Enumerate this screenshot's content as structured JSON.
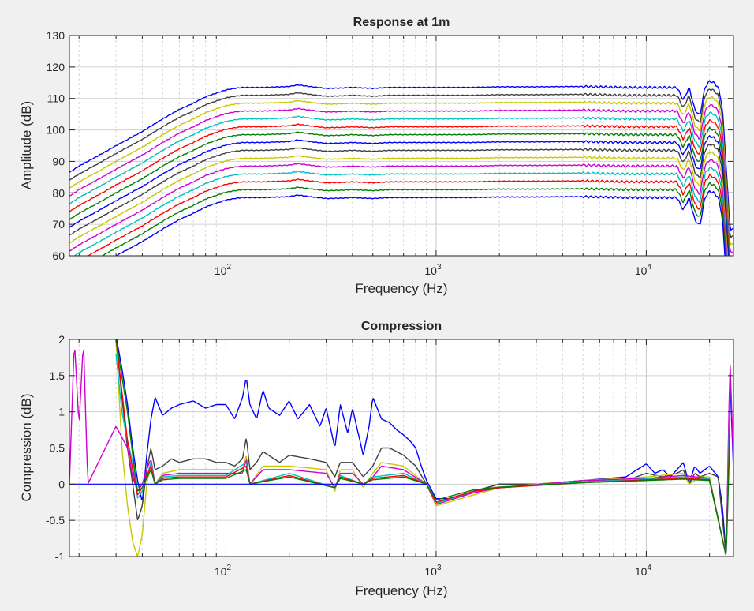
{
  "chart_data": [
    {
      "type": "line",
      "title": "Response at 1m",
      "xlabel": "Frequency (Hz)",
      "ylabel": "Amplitude (dB)",
      "xscale": "log",
      "xlim": [
        18,
        26000
      ],
      "ylim": [
        60,
        130
      ],
      "yticks": [
        "60",
        "70",
        "80",
        "90",
        "100",
        "110",
        "120",
        "130"
      ],
      "xticks": [
        {
          "value": 100,
          "base": "10",
          "exp": "2"
        },
        {
          "value": 1000,
          "base": "10",
          "exp": "3"
        },
        {
          "value": 10000,
          "base": "10",
          "exp": "4"
        }
      ],
      "grid": true,
      "curve_shape": {
        "x": [
          18,
          20,
          25,
          30,
          40,
          50,
          60,
          70,
          80,
          90,
          100,
          110,
          120,
          150,
          200,
          220,
          250,
          300,
          350,
          400,
          500,
          600,
          800,
          1000,
          1500,
          2000,
          3000,
          5000,
          8000,
          10000,
          12000,
          14000,
          15000,
          16000,
          17000,
          18000,
          19000,
          20000,
          21000,
          22000,
          23000,
          24000,
          25000
        ],
        "offset": [
          -27,
          -25,
          -21.5,
          -18.5,
          -14,
          -10,
          -7,
          -5,
          -3,
          -1.8,
          -0.8,
          -0.3,
          0,
          0,
          0.3,
          0.8,
          0.3,
          -0.3,
          -0.2,
          0,
          -0.3,
          0,
          0,
          0,
          0,
          0.2,
          0.2,
          0.3,
          0,
          0,
          0,
          0,
          -4,
          0,
          -7,
          -9,
          0,
          2,
          1.5,
          0,
          -6,
          -25,
          -45
        ]
      },
      "series": [
        {
          "name": "",
          "color": "#0000ff",
          "level": 113.5
        },
        {
          "name": "",
          "color": "#404040",
          "level": 111
        },
        {
          "name": "",
          "color": "#c8c800",
          "level": 108.5
        },
        {
          "name": "",
          "color": "#d000d0",
          "level": 106
        },
        {
          "name": "",
          "color": "#00c0c0",
          "level": 103.5
        },
        {
          "name": "",
          "color": "#ff0000",
          "level": 101
        },
        {
          "name": "",
          "color": "#008000",
          "level": 98.5
        },
        {
          "name": "",
          "color": "#0000ff",
          "level": 96
        },
        {
          "name": "",
          "color": "#404040",
          "level": 93.5
        },
        {
          "name": "",
          "color": "#c8c800",
          "level": 91
        },
        {
          "name": "",
          "color": "#d000d0",
          "level": 88.5
        },
        {
          "name": "",
          "color": "#00c0c0",
          "level": 86
        },
        {
          "name": "",
          "color": "#ff0000",
          "level": 83.5
        },
        {
          "name": "",
          "color": "#008000",
          "level": 81
        },
        {
          "name": "",
          "color": "#0000ff",
          "level": 78.5
        }
      ]
    },
    {
      "type": "line",
      "title": "Compression",
      "xlabel": "Frequency (Hz)",
      "ylabel": "Compression (dB)",
      "xscale": "log",
      "xlim": [
        18,
        26000
      ],
      "ylim": [
        -1,
        2
      ],
      "yticks": [
        "-1",
        "-0.5",
        "0",
        "0.5",
        "1",
        "1.5",
        "2"
      ],
      "xticks": [
        {
          "value": 100,
          "base": "10",
          "exp": "2"
        },
        {
          "value": 1000,
          "base": "10",
          "exp": "3"
        },
        {
          "value": 10000,
          "base": "10",
          "exp": "4"
        }
      ],
      "grid": true,
      "series": [
        {
          "name": "",
          "color": "#0000ff",
          "x": [
            30,
            32,
            34,
            36,
            38,
            40,
            42,
            44,
            46,
            50,
            55,
            60,
            70,
            80,
            90,
            100,
            110,
            120,
            125,
            130,
            140,
            150,
            160,
            180,
            200,
            220,
            250,
            280,
            300,
            330,
            350,
            380,
            400,
            450,
            480,
            500,
            550,
            600,
            650,
            700,
            750,
            800,
            850,
            900,
            1000,
            1200,
            1500,
            2000,
            3000,
            5000,
            8000,
            10000,
            11000,
            12000,
            13000,
            14000,
            15000,
            16000,
            17000,
            18000,
            20000,
            22000,
            23000,
            24000,
            25000,
            26000
          ],
          "y": [
            2.05,
            1.6,
            1.1,
            0.5,
            0.05,
            -0.25,
            0.4,
            0.9,
            1.2,
            0.95,
            1.05,
            1.1,
            1.15,
            1.05,
            1.1,
            1.1,
            0.9,
            1.2,
            1.48,
            1.1,
            0.9,
            1.3,
            1.05,
            0.95,
            1.15,
            0.9,
            1.1,
            0.8,
            1.05,
            0.5,
            1.1,
            0.7,
            1.05,
            0.4,
            0.8,
            1.2,
            0.9,
            0.85,
            0.75,
            0.68,
            0.6,
            0.5,
            0.25,
            0.05,
            -0.2,
            -0.2,
            -0.1,
            0,
            0,
            0.05,
            0.1,
            0.28,
            0.15,
            0.2,
            0.1,
            0.2,
            0.3,
            0.0,
            0.25,
            0.15,
            0.25,
            0.1,
            -0.3,
            -1.0,
            1.5,
            0.2
          ]
        },
        {
          "name": "",
          "color": "#404040",
          "x": [
            30,
            32,
            34,
            36,
            38,
            40,
            42,
            44,
            46,
            50,
            55,
            60,
            70,
            80,
            90,
            100,
            110,
            120,
            125,
            130,
            140,
            150,
            180,
            200,
            250,
            300,
            330,
            350,
            400,
            450,
            500,
            550,
            600,
            700,
            800,
            900,
            1000,
            1500,
            2000,
            3000,
            5000,
            8000,
            10000,
            12000,
            14000,
            15000,
            16000,
            17000,
            18000,
            20000,
            22000,
            24000,
            25000
          ],
          "y": [
            2.0,
            1.2,
            0.5,
            0.0,
            -0.5,
            -0.3,
            0.2,
            0.5,
            0.2,
            0.25,
            0.35,
            0.3,
            0.35,
            0.35,
            0.3,
            0.3,
            0.25,
            0.35,
            0.65,
            0.2,
            0.3,
            0.45,
            0.3,
            0.4,
            0.35,
            0.3,
            0.1,
            0.3,
            0.3,
            0.1,
            0.25,
            0.5,
            0.5,
            0.4,
            0.25,
            0.0,
            -0.25,
            -0.1,
            0,
            0,
            0.05,
            0.05,
            0.15,
            0.1,
            0.15,
            0.2,
            0.0,
            0.15,
            0.1,
            0.15,
            0.1,
            -1.0,
            1.4
          ]
        },
        {
          "name": "",
          "color": "#c8c800",
          "x": [
            30,
            32,
            34,
            36,
            38,
            40,
            42,
            44,
            46,
            50,
            60,
            80,
            100,
            120,
            125,
            130,
            150,
            200,
            300,
            330,
            350,
            400,
            450,
            500,
            550,
            700,
            900,
            1000,
            1500,
            2000,
            3000,
            5000,
            10000,
            15000,
            16000,
            18000,
            20000,
            24000,
            25000
          ],
          "y": [
            2.0,
            0.5,
            -0.3,
            -0.8,
            -1.0,
            -0.7,
            0.0,
            0.3,
            0.0,
            0.15,
            0.2,
            0.2,
            0.2,
            0.2,
            0.4,
            0.0,
            0.25,
            0.25,
            0.2,
            -0.1,
            0.2,
            0.2,
            -0.05,
            0.15,
            0.3,
            0.25,
            0.0,
            -0.3,
            -0.15,
            -0.05,
            0,
            0.05,
            0.1,
            0.15,
            0.0,
            0.1,
            0.1,
            -1.0,
            1.3
          ]
        },
        {
          "name": "",
          "color": "#d000d0",
          "x": [
            18,
            19,
            20,
            21,
            22,
            30,
            34,
            36,
            38,
            40,
            42,
            44,
            46,
            50,
            60,
            80,
            100,
            120,
            125,
            130,
            150,
            200,
            300,
            330,
            350,
            400,
            450,
            500,
            550,
            700,
            900,
            1000,
            1500,
            2000,
            5000,
            10000,
            15000,
            20000,
            24000,
            25000,
            26000
          ],
          "y": [
            0,
            2.0,
            0.8,
            2.0,
            0,
            0.8,
            0.5,
            0.1,
            -0.1,
            0.0,
            0.2,
            0.35,
            0.0,
            0.12,
            0.15,
            0.15,
            0.15,
            0.15,
            0.35,
            0.0,
            0.2,
            0.2,
            0.15,
            -0.05,
            0.15,
            0.15,
            0.0,
            0.1,
            0.25,
            0.2,
            0.0,
            -0.28,
            -0.12,
            -0.05,
            0.05,
            0.08,
            0.12,
            0.08,
            -1.0,
            1.75,
            0.3
          ]
        },
        {
          "name": "",
          "color": "#00c0c0",
          "x": [
            30,
            32,
            34,
            36,
            38,
            40,
            42,
            44,
            46,
            50,
            60,
            80,
            100,
            125,
            130,
            200,
            330,
            350,
            450,
            500,
            700,
            900,
            1000,
            1500,
            2000,
            5000,
            10000,
            15000,
            20000,
            24000,
            25000
          ],
          "y": [
            1.8,
            1.0,
            0.6,
            0.3,
            -0.2,
            -0.1,
            0.1,
            0.3,
            0.0,
            0.1,
            0.12,
            0.12,
            0.12,
            0.3,
            0.0,
            0.15,
            -0.05,
            0.12,
            0.0,
            0.1,
            0.15,
            0.0,
            -0.27,
            -0.1,
            -0.05,
            0.03,
            0.07,
            0.1,
            0.07,
            -1.0,
            1.2
          ]
        },
        {
          "name": "",
          "color": "#ff0000",
          "x": [
            30,
            34,
            36,
            38,
            40,
            44,
            46,
            50,
            60,
            100,
            125,
            130,
            200,
            330,
            350,
            450,
            500,
            700,
            900,
            1000,
            1500,
            2000,
            5000,
            10000,
            15000,
            20000,
            24000,
            25000
          ],
          "y": [
            2.0,
            0.6,
            0.2,
            -0.15,
            -0.05,
            0.25,
            0.0,
            0.08,
            0.1,
            0.1,
            0.25,
            0.0,
            0.12,
            -0.05,
            0.1,
            0.0,
            0.08,
            0.12,
            0.0,
            -0.25,
            -0.1,
            -0.05,
            0.02,
            0.06,
            0.08,
            0.06,
            -1.0,
            0.9
          ]
        },
        {
          "name": "",
          "color": "#008000",
          "x": [
            30,
            34,
            36,
            38,
            40,
            44,
            46,
            50,
            60,
            100,
            125,
            130,
            200,
            330,
            350,
            450,
            500,
            700,
            900,
            1000,
            1500,
            2000,
            5000,
            10000,
            15000,
            20000,
            24000,
            25000
          ],
          "y": [
            2.0,
            1.0,
            0.4,
            -0.1,
            -0.05,
            0.2,
            0.0,
            0.06,
            0.08,
            0.08,
            0.2,
            0.0,
            0.1,
            -0.05,
            0.08,
            0.0,
            0.06,
            0.1,
            0.0,
            -0.22,
            -0.08,
            -0.04,
            0.02,
            0.05,
            0.07,
            0.05,
            -1.0,
            0.7
          ]
        }
      ]
    }
  ]
}
